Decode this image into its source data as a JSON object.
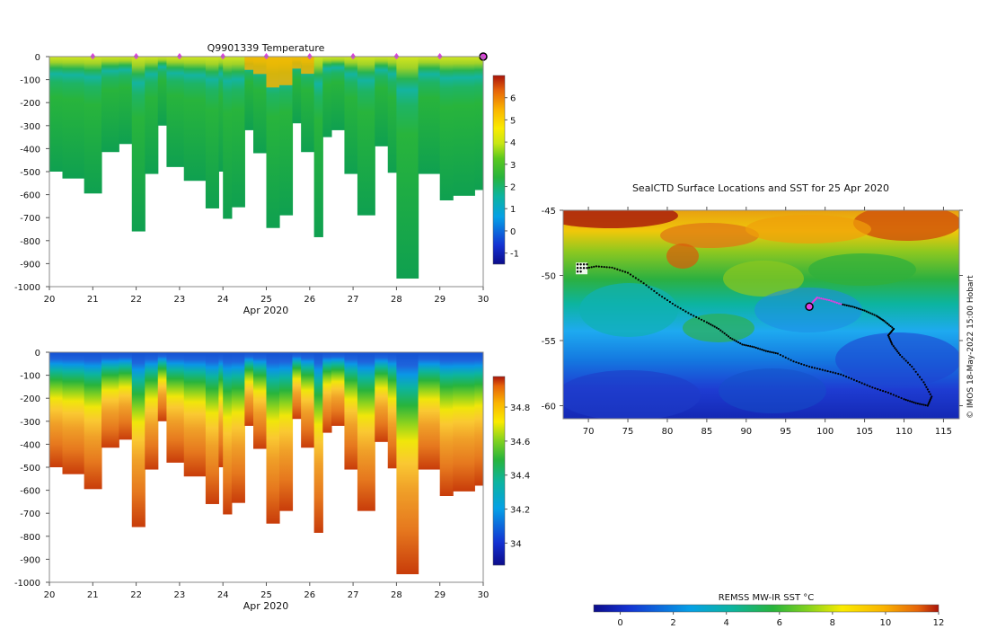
{
  "chart_data": [
    {
      "type": "heatmap",
      "title": "Q9901339  Temperature",
      "xlabel": "Apr 2020",
      "ylabel": "",
      "x_ticks": [
        "20",
        "21",
        "22",
        "23",
        "24",
        "25",
        "26",
        "27",
        "28",
        "29",
        "30"
      ],
      "y_ticks": [
        "0",
        "-100",
        "-200",
        "-300",
        "-400",
        "-500",
        "-600",
        "-700",
        "-800",
        "-900",
        "-1000"
      ],
      "xlim": [
        20,
        30
      ],
      "ylim": [
        -1000,
        0
      ],
      "colorbar": {
        "ticks": [
          "-1",
          "0",
          "1",
          "2",
          "3",
          "4",
          "5",
          "6"
        ],
        "range": [
          -1.5,
          7
        ]
      },
      "surface_markers_day": [
        21,
        22,
        23,
        24,
        25,
        26,
        27,
        28,
        29,
        30
      ],
      "profiles": [
        {
          "day": 20.0,
          "max_depth": 500
        },
        {
          "day": 20.3,
          "max_depth": 530
        },
        {
          "day": 20.8,
          "max_depth": 595
        },
        {
          "day": 21.2,
          "max_depth": 415
        },
        {
          "day": 21.6,
          "max_depth": 380
        },
        {
          "day": 21.9,
          "max_depth": 760
        },
        {
          "day": 22.2,
          "max_depth": 510
        },
        {
          "day": 22.5,
          "max_depth": 300
        },
        {
          "day": 22.7,
          "max_depth": 480
        },
        {
          "day": 23.1,
          "max_depth": 540
        },
        {
          "day": 23.6,
          "max_depth": 660
        },
        {
          "day": 23.9,
          "max_depth": 500
        },
        {
          "day": 24.0,
          "max_depth": 705
        },
        {
          "day": 24.2,
          "max_depth": 655
        },
        {
          "day": 24.5,
          "max_depth": 320
        },
        {
          "day": 24.7,
          "max_depth": 420
        },
        {
          "day": 25.0,
          "max_depth": 745
        },
        {
          "day": 25.3,
          "max_depth": 690
        },
        {
          "day": 25.6,
          "max_depth": 290
        },
        {
          "day": 25.8,
          "max_depth": 415
        },
        {
          "day": 26.1,
          "max_depth": 785
        },
        {
          "day": 26.3,
          "max_depth": 350
        },
        {
          "day": 26.5,
          "max_depth": 320
        },
        {
          "day": 26.8,
          "max_depth": 510
        },
        {
          "day": 27.1,
          "max_depth": 690
        },
        {
          "day": 27.5,
          "max_depth": 390
        },
        {
          "day": 27.8,
          "max_depth": 505
        },
        {
          "day": 28.0,
          "max_depth": 965
        },
        {
          "day": 28.5,
          "max_depth": 510
        },
        {
          "day": 29.0,
          "max_depth": 625
        },
        {
          "day": 29.3,
          "max_depth": 605
        },
        {
          "day": 29.8,
          "max_depth": 580
        }
      ]
    },
    {
      "type": "heatmap",
      "title": "",
      "xlabel": "Apr 2020",
      "ylabel": "",
      "x_ticks": [
        "20",
        "21",
        "22",
        "23",
        "24",
        "25",
        "26",
        "27",
        "28",
        "29",
        "30"
      ],
      "y_ticks": [
        "0",
        "-100",
        "-200",
        "-300",
        "-400",
        "-500",
        "-600",
        "-700",
        "-800",
        "-900",
        "-1000"
      ],
      "xlim": [
        20,
        30
      ],
      "ylim": [
        -1000,
        0
      ],
      "colorbar": {
        "ticks": [
          "34",
          "34.2",
          "34.4",
          "34.6",
          "34.8"
        ],
        "range": [
          33.87,
          34.98
        ]
      }
    },
    {
      "type": "heatmap",
      "title": "SealCTD Surface Locations and SST for 25 Apr 2020",
      "x_ticks": [
        "70",
        "75",
        "80",
        "85",
        "90",
        "95",
        "100",
        "105",
        "110",
        "115"
      ],
      "y_ticks": [
        "-45",
        "-50",
        "-55",
        "-60"
      ],
      "xlim": [
        66.8,
        117
      ],
      "ylim": [
        -61,
        -45
      ],
      "colorbar": {
        "label": "REMSS MW-IR SST °C",
        "ticks": [
          "0",
          "2",
          "4",
          "6",
          "8",
          "10",
          "12"
        ],
        "range": [
          -1,
          12
        ]
      },
      "credit": "© IMOS 18-May-2022 15:00 Hobart",
      "track_black": [
        [
          69.2,
          -49.5
        ],
        [
          71,
          -49.3
        ],
        [
          73,
          -49.4
        ],
        [
          75,
          -49.8
        ],
        [
          77,
          -50.6
        ],
        [
          79,
          -51.5
        ],
        [
          81,
          -52.3
        ],
        [
          83,
          -53
        ],
        [
          85,
          -53.6
        ],
        [
          86.5,
          -54.1
        ],
        [
          88,
          -54.8
        ],
        [
          89.5,
          -55.3
        ],
        [
          91,
          -55.5
        ],
        [
          92.5,
          -55.8
        ],
        [
          94,
          -56
        ],
        [
          96,
          -56.6
        ],
        [
          98,
          -57
        ],
        [
          100,
          -57.3
        ],
        [
          102,
          -57.6
        ],
        [
          104,
          -58.1
        ],
        [
          106,
          -58.6
        ],
        [
          108,
          -59
        ],
        [
          110,
          -59.5
        ],
        [
          111.5,
          -59.8
        ],
        [
          113,
          -60
        ],
        [
          113.5,
          -59.3
        ],
        [
          112.5,
          -58.2
        ],
        [
          111,
          -57
        ],
        [
          109.5,
          -56.1
        ],
        [
          108.5,
          -55.3
        ],
        [
          108,
          -54.6
        ],
        [
          108.7,
          -54.1
        ],
        [
          107.5,
          -53.5
        ],
        [
          106.5,
          -53.1
        ],
        [
          105,
          -52.7
        ],
        [
          103.5,
          -52.4
        ],
        [
          102,
          -52.2
        ]
      ],
      "track_magenta": [
        [
          102,
          -52.2
        ],
        [
          100.5,
          -51.9
        ],
        [
          99,
          -51.7
        ],
        [
          98.5,
          -52
        ],
        [
          98,
          -52.4
        ]
      ],
      "current_position": [
        98,
        -52.4
      ]
    }
  ]
}
